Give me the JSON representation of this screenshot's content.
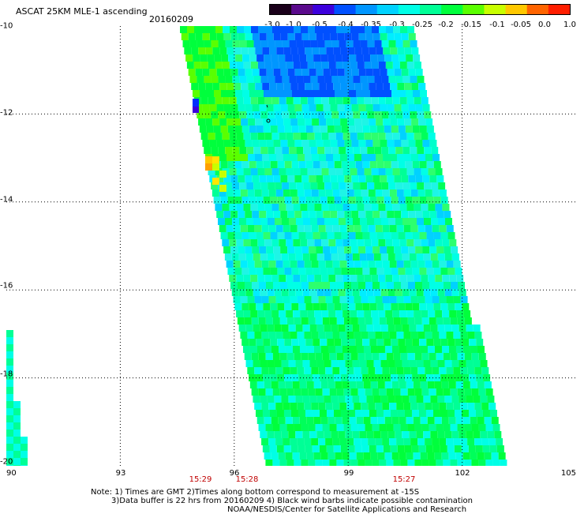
{
  "title": "ASCAT 25KM MLE-1 ascending",
  "date": "20160209",
  "colorbar": {
    "labels": [
      "-3.0",
      "-1.0",
      "-0.5",
      "-0.4",
      "-0.35",
      "-0.3",
      "-0.25",
      "-0.2",
      "-0.15",
      "-0.1",
      "-0.05",
      "0.0",
      "1.0"
    ],
    "colors": [
      "#1a001a",
      "#5a0a8c",
      "#3c00dc",
      "#0050ff",
      "#0096ff",
      "#00d2ff",
      "#00ffe6",
      "#00ff96",
      "#00ff3c",
      "#5aff00",
      "#c8ff00",
      "#ffc800",
      "#ff6400",
      "#ff1e00"
    ]
  },
  "map": {
    "lon_labels": [
      "90",
      "93",
      "96",
      "99",
      "102",
      "105"
    ],
    "lat_labels": [
      "-10",
      "-12",
      "-14",
      "-16",
      "-18",
      "-20"
    ],
    "time_labels": [
      "15:29",
      "15:28",
      "15:27"
    ],
    "lon_range": [
      90,
      105
    ],
    "lat_range": [
      -10,
      -20
    ]
  },
  "notes": [
    "Note: 1) Times are GMT 2)Times along bottom correspond to measurement at -15S",
    "3)Data buffer is 22 hrs from 20160209 4) Black wind barbs indicate possible contamination",
    "NOAA/NESDIS/Center for Satellite Applications and Research"
  ]
}
